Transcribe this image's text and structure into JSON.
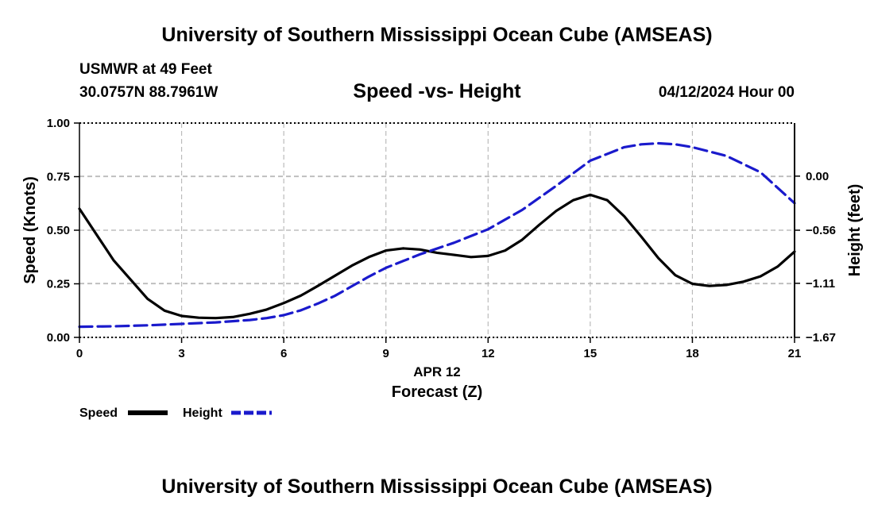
{
  "header": {
    "top_title": "University of Southern Mississippi Ocean Cube (AMSEAS)",
    "bottom_title": "University of Southern Mississippi Ocean Cube (AMSEAS)",
    "station": "USMWR at 49 Feet",
    "coordinates": "30.0757N  88.7961W",
    "datestamp": "04/12/2024 Hour 00"
  },
  "colors": {
    "speed": "#000000",
    "height": "#1a1acc",
    "grid": "#bbbbbb"
  },
  "chart_data": {
    "type": "line",
    "title": "Speed -vs- Height",
    "xlabel": "Forecast (Z)",
    "xlabel_date": "APR 12",
    "ylabel": "Speed (Knots)",
    "y2label": "Height (feet)",
    "xlim": [
      0,
      21
    ],
    "ylim": [
      0,
      1
    ],
    "y2lim": [
      -1.67,
      0.55
    ],
    "x_ticks": [
      0,
      3,
      6,
      9,
      12,
      15,
      18,
      21
    ],
    "x_tick_labels": [
      "0",
      "3",
      "6",
      "9",
      "12",
      "15",
      "18",
      "21"
    ],
    "y_ticks": [
      0,
      0.25,
      0.5,
      0.75,
      1.0
    ],
    "y_tick_labels": [
      "0.00",
      "0.25",
      "0.50",
      "0.75",
      "1.00"
    ],
    "y2_ticks": [
      0.0,
      -0.56,
      -1.11,
      -1.67
    ],
    "y2_tick_labels": [
      "0.00",
      "−0.56",
      "−1.11",
      "−1.67"
    ],
    "grid": true,
    "series": [
      {
        "name": "Speed",
        "axis": "left",
        "style": "solid",
        "x": [
          0,
          1,
          2,
          2.5,
          3,
          3.5,
          4,
          4.5,
          5,
          5.5,
          6,
          6.5,
          7,
          8,
          8.5,
          9,
          9.5,
          10,
          10.5,
          11,
          11.5,
          12,
          12.5,
          13,
          13.5,
          14,
          14.5,
          15,
          15.5,
          16,
          16.5,
          17,
          17.5,
          18,
          18.5,
          19,
          19.5,
          20,
          20.5,
          21
        ],
        "values": [
          0.6,
          0.36,
          0.18,
          0.125,
          0.1,
          0.092,
          0.09,
          0.095,
          0.11,
          0.13,
          0.16,
          0.195,
          0.24,
          0.335,
          0.375,
          0.405,
          0.415,
          0.41,
          0.395,
          0.385,
          0.375,
          0.38,
          0.405,
          0.455,
          0.525,
          0.59,
          0.64,
          0.665,
          0.64,
          0.565,
          0.47,
          0.37,
          0.29,
          0.25,
          0.24,
          0.245,
          0.26,
          0.285,
          0.33,
          0.4
        ]
      },
      {
        "name": "Height",
        "axis": "right",
        "style": "dashed",
        "x": [
          0,
          1,
          2,
          3,
          4,
          5,
          5.5,
          6,
          6.5,
          7,
          7.5,
          8,
          8.5,
          9,
          9.5,
          10,
          11,
          12,
          13,
          14,
          15,
          16,
          16.5,
          17,
          17.5,
          18,
          19,
          20,
          21
        ],
        "values": [
          -1.56,
          -1.555,
          -1.545,
          -1.53,
          -1.515,
          -1.49,
          -1.47,
          -1.44,
          -1.39,
          -1.32,
          -1.24,
          -1.14,
          -1.04,
          -0.95,
          -0.88,
          -0.81,
          -0.69,
          -0.55,
          -0.35,
          -0.1,
          0.16,
          0.3,
          0.33,
          0.34,
          0.33,
          0.3,
          0.21,
          0.04,
          -0.28
        ]
      }
    ],
    "legend": [
      {
        "label": "Speed"
      },
      {
        "label": "Height"
      }
    ],
    "legend_position": "bottom-left"
  }
}
